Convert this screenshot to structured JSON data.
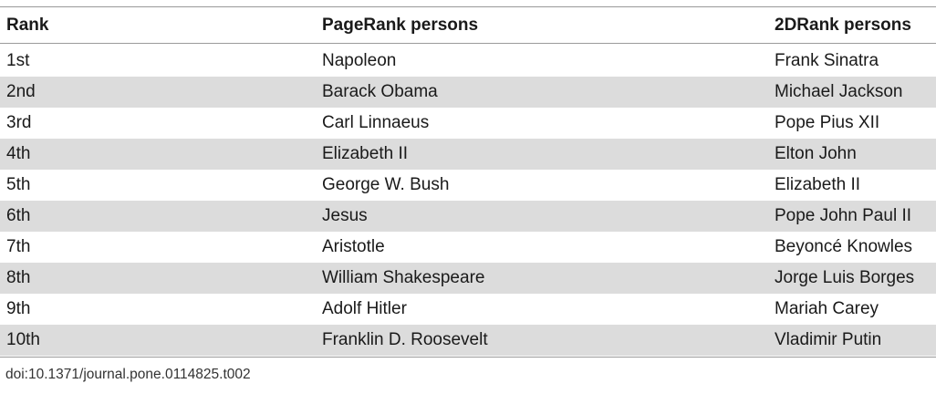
{
  "table": {
    "headers": [
      "Rank",
      "PageRank persons",
      "2DRank persons"
    ],
    "rows": [
      [
        "1st",
        "Napoleon",
        "Frank Sinatra"
      ],
      [
        "2nd",
        "Barack Obama",
        "Michael Jackson"
      ],
      [
        "3rd",
        "Carl Linnaeus",
        "Pope Pius XII"
      ],
      [
        "4th",
        "Elizabeth II",
        "Elton John"
      ],
      [
        "5th",
        "George W. Bush",
        "Elizabeth II"
      ],
      [
        "6th",
        "Jesus",
        "Pope John Paul II"
      ],
      [
        "7th",
        "Aristotle",
        "Beyoncé Knowles"
      ],
      [
        "8th",
        "William Shakespeare",
        "Jorge Luis Borges"
      ],
      [
        "9th",
        "Adolf Hitler",
        "Mariah Carey"
      ],
      [
        "10th",
        "Franklin D. Roosevelt",
        "Vladimir Putin"
      ]
    ]
  },
  "doi": "doi:10.1371/journal.pone.0114825.t002"
}
